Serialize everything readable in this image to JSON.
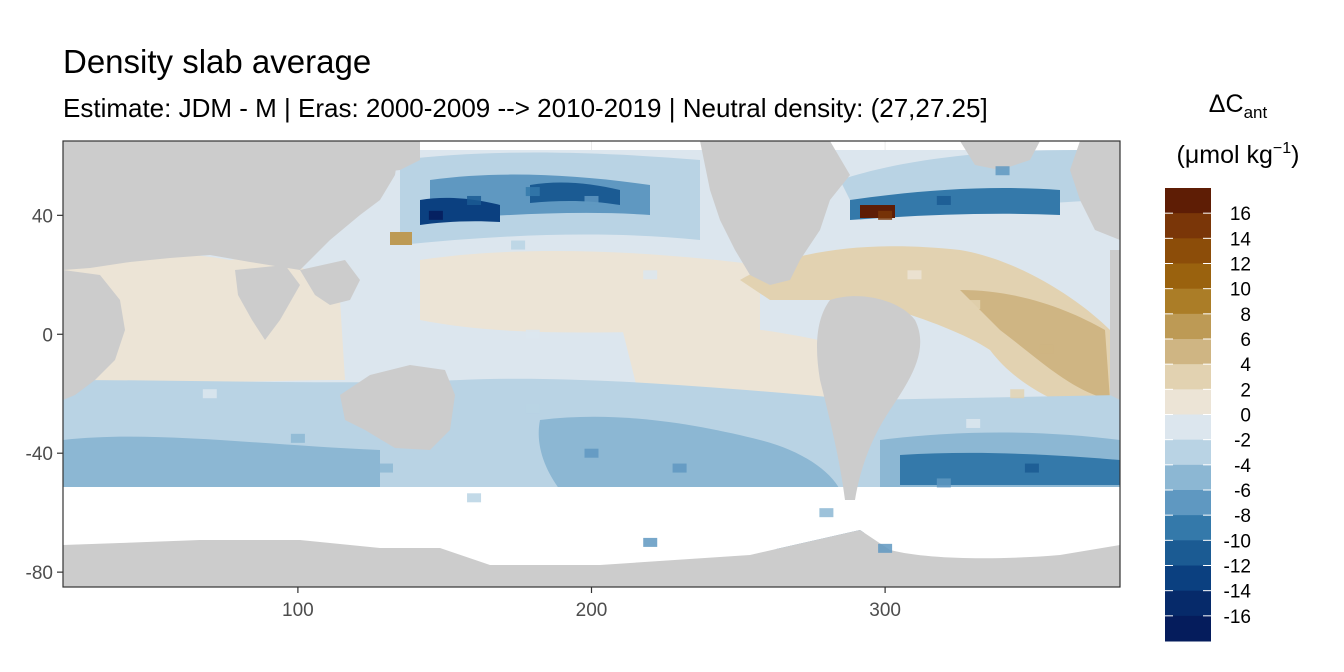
{
  "title": "Density slab average",
  "subtitle": "Estimate: JDM - M | Eras: 2000-2009 --> 2010-2019 | Neutral density: (27,27.25]",
  "chart_data": {
    "type": "heatmap",
    "title": "Density slab average",
    "subtitle": "Estimate: JDM - M | Eras: 2000-2009 --> 2010-2019 | Neutral density: (27,27.25]",
    "xlabel": "",
    "ylabel": "",
    "xlim": [
      20,
      380
    ],
    "ylim": [
      -85,
      65
    ],
    "x_ticks": [
      100,
      200,
      300
    ],
    "y_ticks": [
      40,
      0,
      -40,
      -80
    ],
    "grid": true,
    "legend": {
      "position": "right",
      "title_main": "ΔC",
      "title_sub": "ant",
      "title_unit": "(μmol kg",
      "title_exp": "−1",
      "title_close": ")",
      "levels": [
        16,
        14,
        12,
        10,
        8,
        6,
        4,
        2,
        0,
        -2,
        -4,
        -6,
        -8,
        -10,
        -12,
        -14,
        -16
      ],
      "colors": [
        "#5e1d05",
        "#7a3608",
        "#8c4d09",
        "#9a620e",
        "#ab7d27",
        "#bd9a55",
        "#cfb583",
        "#e2d2b1",
        "#ece4d6",
        "#dce6ee",
        "#b9d3e4",
        "#8cb7d3",
        "#5f98c1",
        "#3479aa",
        "#1b5b93",
        "#0b4080",
        "#062a6a",
        "#051c5c"
      ]
    },
    "land_color": "#cccccc",
    "no_data_color": "#ffffff",
    "cells": [
      {
        "x": 147,
        "y": 40,
        "value": -16
      },
      {
        "x": 160,
        "y": 45,
        "value": -10
      },
      {
        "x": 180,
        "y": 48,
        "value": -8
      },
      {
        "x": 200,
        "y": 45,
        "value": -6
      },
      {
        "x": 135,
        "y": 32,
        "value": 8
      },
      {
        "x": 175,
        "y": 30,
        "value": -2
      },
      {
        "x": 220,
        "y": 20,
        "value": 0
      },
      {
        "x": 180,
        "y": 0,
        "value": 0
      },
      {
        "x": 240,
        "y": 0,
        "value": 2
      },
      {
        "x": 80,
        "y": 5,
        "value": 2
      },
      {
        "x": 70,
        "y": -20,
        "value": 0
      },
      {
        "x": 100,
        "y": -35,
        "value": -4
      },
      {
        "x": 130,
        "y": -45,
        "value": -4
      },
      {
        "x": 200,
        "y": -40,
        "value": -6
      },
      {
        "x": 230,
        "y": -45,
        "value": -6
      },
      {
        "x": 180,
        "y": -25,
        "value": -2
      },
      {
        "x": 160,
        "y": -55,
        "value": -2
      },
      {
        "x": 280,
        "y": -60,
        "value": -4
      },
      {
        "x": 310,
        "y": 20,
        "value": 2
      },
      {
        "x": 330,
        "y": 10,
        "value": 4
      },
      {
        "x": 355,
        "y": -5,
        "value": 6
      },
      {
        "x": 345,
        "y": -20,
        "value": 4
      },
      {
        "x": 330,
        "y": -30,
        "value": 0
      },
      {
        "x": 300,
        "y": 40,
        "value": 16
      },
      {
        "x": 320,
        "y": 45,
        "value": -10
      },
      {
        "x": 340,
        "y": 55,
        "value": -6
      },
      {
        "x": 350,
        "y": -45,
        "value": -10
      },
      {
        "x": 320,
        "y": -50,
        "value": -6
      },
      {
        "x": 300,
        "y": -72,
        "value": -6
      },
      {
        "x": 220,
        "y": -70,
        "value": -6
      }
    ]
  }
}
